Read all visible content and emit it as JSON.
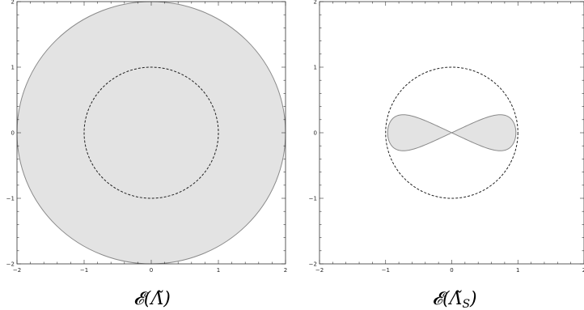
{
  "chart_data": [
    {
      "type": "region",
      "caption": "𝓔(Λ̃)",
      "caption_main": "𝓔(Λ̃)",
      "caption_sub": "",
      "xlim": [
        -2,
        2
      ],
      "ylim": [
        -2,
        2
      ],
      "x_ticks": [
        -2,
        -1,
        0,
        1,
        2
      ],
      "y_ticks": [
        -2,
        -1,
        0,
        1,
        2
      ],
      "x_tick_labels": [
        "−2",
        "−1",
        "0",
        "1",
        "2"
      ],
      "y_tick_labels": [
        "−2",
        "−1",
        "0",
        "1",
        "2"
      ],
      "filled_region": {
        "shape": "disk",
        "center": [
          0,
          0
        ],
        "radius": 2,
        "fill": "#e3e3e3",
        "stroke": "#8a8a8a"
      },
      "reference_curve": {
        "shape": "circle",
        "center": [
          0,
          0
        ],
        "radius": 1,
        "style": "dashed",
        "stroke": "#222222"
      },
      "grid": false
    },
    {
      "type": "region",
      "caption": "𝓔(Λ̃S)",
      "caption_main": "𝓔(Λ̃",
      "caption_sub": "S",
      "xlim": [
        -2,
        2
      ],
      "ylim": [
        -2,
        2
      ],
      "x_ticks": [
        -2,
        -1,
        0,
        1,
        2
      ],
      "y_ticks": [
        -2,
        -1,
        0,
        1,
        2
      ],
      "x_tick_labels": [
        "−2",
        "−1",
        "0",
        "1",
        "2"
      ],
      "y_tick_labels": [
        "−2",
        "−1",
        "0",
        "1",
        "2"
      ],
      "filled_region": {
        "shape": "lemniscate",
        "center": [
          0,
          0
        ],
        "x_extent": [
          -0.97,
          0.97
        ],
        "y_extent": [
          -0.34,
          0.34
        ],
        "fill": "#e3e3e3",
        "stroke": "#8a8a8a"
      },
      "reference_curve": {
        "shape": "circle",
        "center": [
          0,
          0
        ],
        "radius": 1,
        "style": "dashed",
        "stroke": "#222222"
      },
      "grid": false
    }
  ]
}
